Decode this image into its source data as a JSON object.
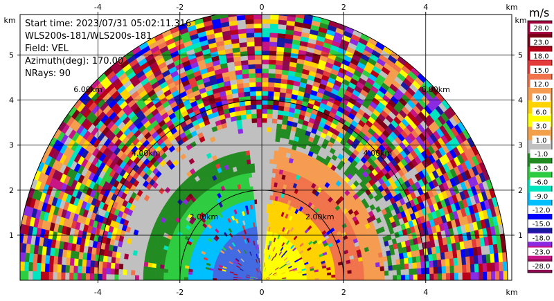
{
  "info": {
    "start_time": "Start time: 2023/07/31 05:02:11.316",
    "instrument": "WLS200s-181/WLS200s-181",
    "field": "Field: VEL",
    "azimuth": "Azimuth(deg): 170.00",
    "nrays": "NRays: 90"
  },
  "colorbar": {
    "unit": "m/s",
    "labels": [
      "28.0",
      "23.0",
      "18.0",
      "15.0",
      "12.0",
      "9.0",
      "6.0",
      "3.0",
      "1.0",
      "-1.0",
      "-3.0",
      "-6.0",
      "-9.0",
      "-12.0",
      "-15.0",
      "-18.0",
      "-23.0",
      "-28.0"
    ],
    "colors": [
      "#a0003c",
      "#7a0015",
      "#b80018",
      "#e53a3a",
      "#f0734b",
      "#f59c50",
      "#ffd200",
      "#ffff00",
      "#f3a04a",
      "#c0c0c0",
      "#228b22",
      "#2ecc40",
      "#00e5c0",
      "#00bfff",
      "#0000ff",
      "#1a1aa0",
      "#8a2be2",
      "#c71585",
      "#8b0a50"
    ]
  },
  "chart_data": {
    "type": "heatmap",
    "title": "",
    "xlabel": "",
    "ylabel": "",
    "xunit": "km",
    "yunit": "km",
    "xlim": [
      -5.9,
      6.1
    ],
    "ylim": [
      0,
      5.9
    ],
    "xticks": [
      -4,
      -2,
      0,
      2,
      4
    ],
    "yticks": [
      1,
      2,
      3,
      4,
      5
    ],
    "range_rings": [
      {
        "radius": 2,
        "label": "2.00km"
      },
      {
        "radius": 4,
        "label": "4.00km"
      },
      {
        "radius": 6,
        "label": "6.00km"
      }
    ],
    "max_range_km": 6,
    "grid": true,
    "colorbar": "right"
  }
}
